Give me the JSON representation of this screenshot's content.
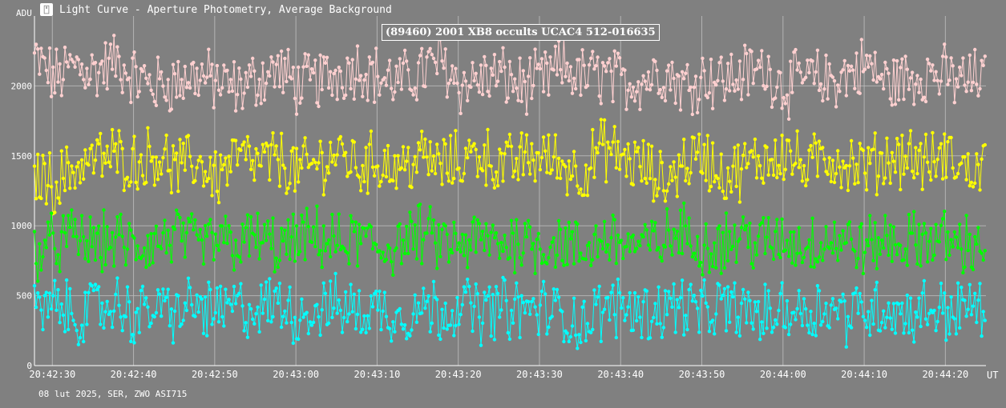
{
  "window": {
    "title": "Light Curve - Aperture Photometry, Average Background",
    "icon": "light-curve-app-icon"
  },
  "footer": {
    "note": "08 lut 2025, SER, ZWO ASI715"
  },
  "colors": {
    "background": "#808080",
    "grid": "#c0c0c0",
    "series_pink": "#ffd0d0",
    "series_yellow": "#ffff00",
    "series_green": "#00ff00",
    "series_cyan": "#00ffff"
  },
  "chart_data": {
    "type": "line",
    "title": "(89460) 2001 XB8 occults UCAC4 512-016635",
    "ylabel": "ADU",
    "xlabel": "UT",
    "ylim": [
      0,
      2500
    ],
    "xlim": [
      "20:42:27.8",
      "20:44:25.0"
    ],
    "yticks": [
      0,
      500,
      1000,
      1500,
      2000
    ],
    "xticks": [
      "20:42:30",
      "20:42:40",
      "20:42:50",
      "20:43:00",
      "20:43:10",
      "20:43:20",
      "20:43:30",
      "20:43:40",
      "20:43:50",
      "20:44:00",
      "20:44:10",
      "20:44:20"
    ],
    "grid": true,
    "series": [
      {
        "color": "#ffd0d0",
        "x_start": "20:42:27.8",
        "x_step_s": 2.5,
        "values": [
          2200,
          2050,
          2150,
          2100,
          2180,
          2060,
          2000,
          2030,
          2080,
          2020,
          1980,
          2050,
          2120,
          2000,
          2040,
          2090,
          2150,
          2060,
          2020,
          2100,
          2180,
          2010,
          2050,
          2070,
          2000,
          2030,
          2140,
          2060,
          2080,
          2020,
          2050,
          2110,
          2000,
          2070,
          2040,
          2090,
          2120,
          1990,
          2060,
          2030,
          2080,
          2150,
          2020,
          2050,
          2100,
          2060,
          2030,
          2090
        ]
      },
      {
        "color": "#ffff00",
        "x_start": "20:42:27.8",
        "x_step_s": 2.5,
        "values": [
          1380,
          1300,
          1420,
          1480,
          1500,
          1450,
          1520,
          1400,
          1460,
          1350,
          1500,
          1430,
          1480,
          1380,
          1450,
          1520,
          1420,
          1470,
          1400,
          1500,
          1430,
          1460,
          1530,
          1410,
          1470,
          1500,
          1440,
          1380,
          1560,
          1480,
          1420,
          1300,
          1460,
          1500,
          1350,
          1420,
          1480,
          1530,
          1400,
          1500,
          1450,
          1420,
          1480,
          1510,
          1440,
          1500,
          1380,
          1450
        ]
      },
      {
        "color": "#00ff00",
        "x_start": "20:42:27.8",
        "x_step_s": 2.5,
        "values": [
          820,
          870,
          920,
          860,
          900,
          840,
          880,
          930,
          850,
          890,
          870,
          910,
          840,
          880,
          920,
          860,
          900,
          830,
          870,
          940,
          880,
          850,
          900,
          870,
          910,
          860,
          890,
          800,
          920,
          880,
          840,
          900,
          950,
          860,
          890,
          920,
          870,
          900,
          860,
          910,
          880,
          850,
          900,
          870,
          920,
          890,
          860,
          900
        ]
      },
      {
        "color": "#00ffff",
        "x_start": "20:42:27.8",
        "x_step_s": 2.5,
        "values": [
          380,
          420,
          360,
          400,
          440,
          350,
          410,
          380,
          430,
          370,
          420,
          390,
          450,
          360,
          400,
          430,
          380,
          410,
          350,
          420,
          400,
          440,
          380,
          420,
          390,
          410,
          360,
          300,
          400,
          430,
          380,
          410,
          440,
          370,
          420,
          390,
          350,
          410,
          380,
          430,
          370,
          400,
          420,
          360,
          410,
          390,
          420,
          380
        ]
      }
    ]
  }
}
